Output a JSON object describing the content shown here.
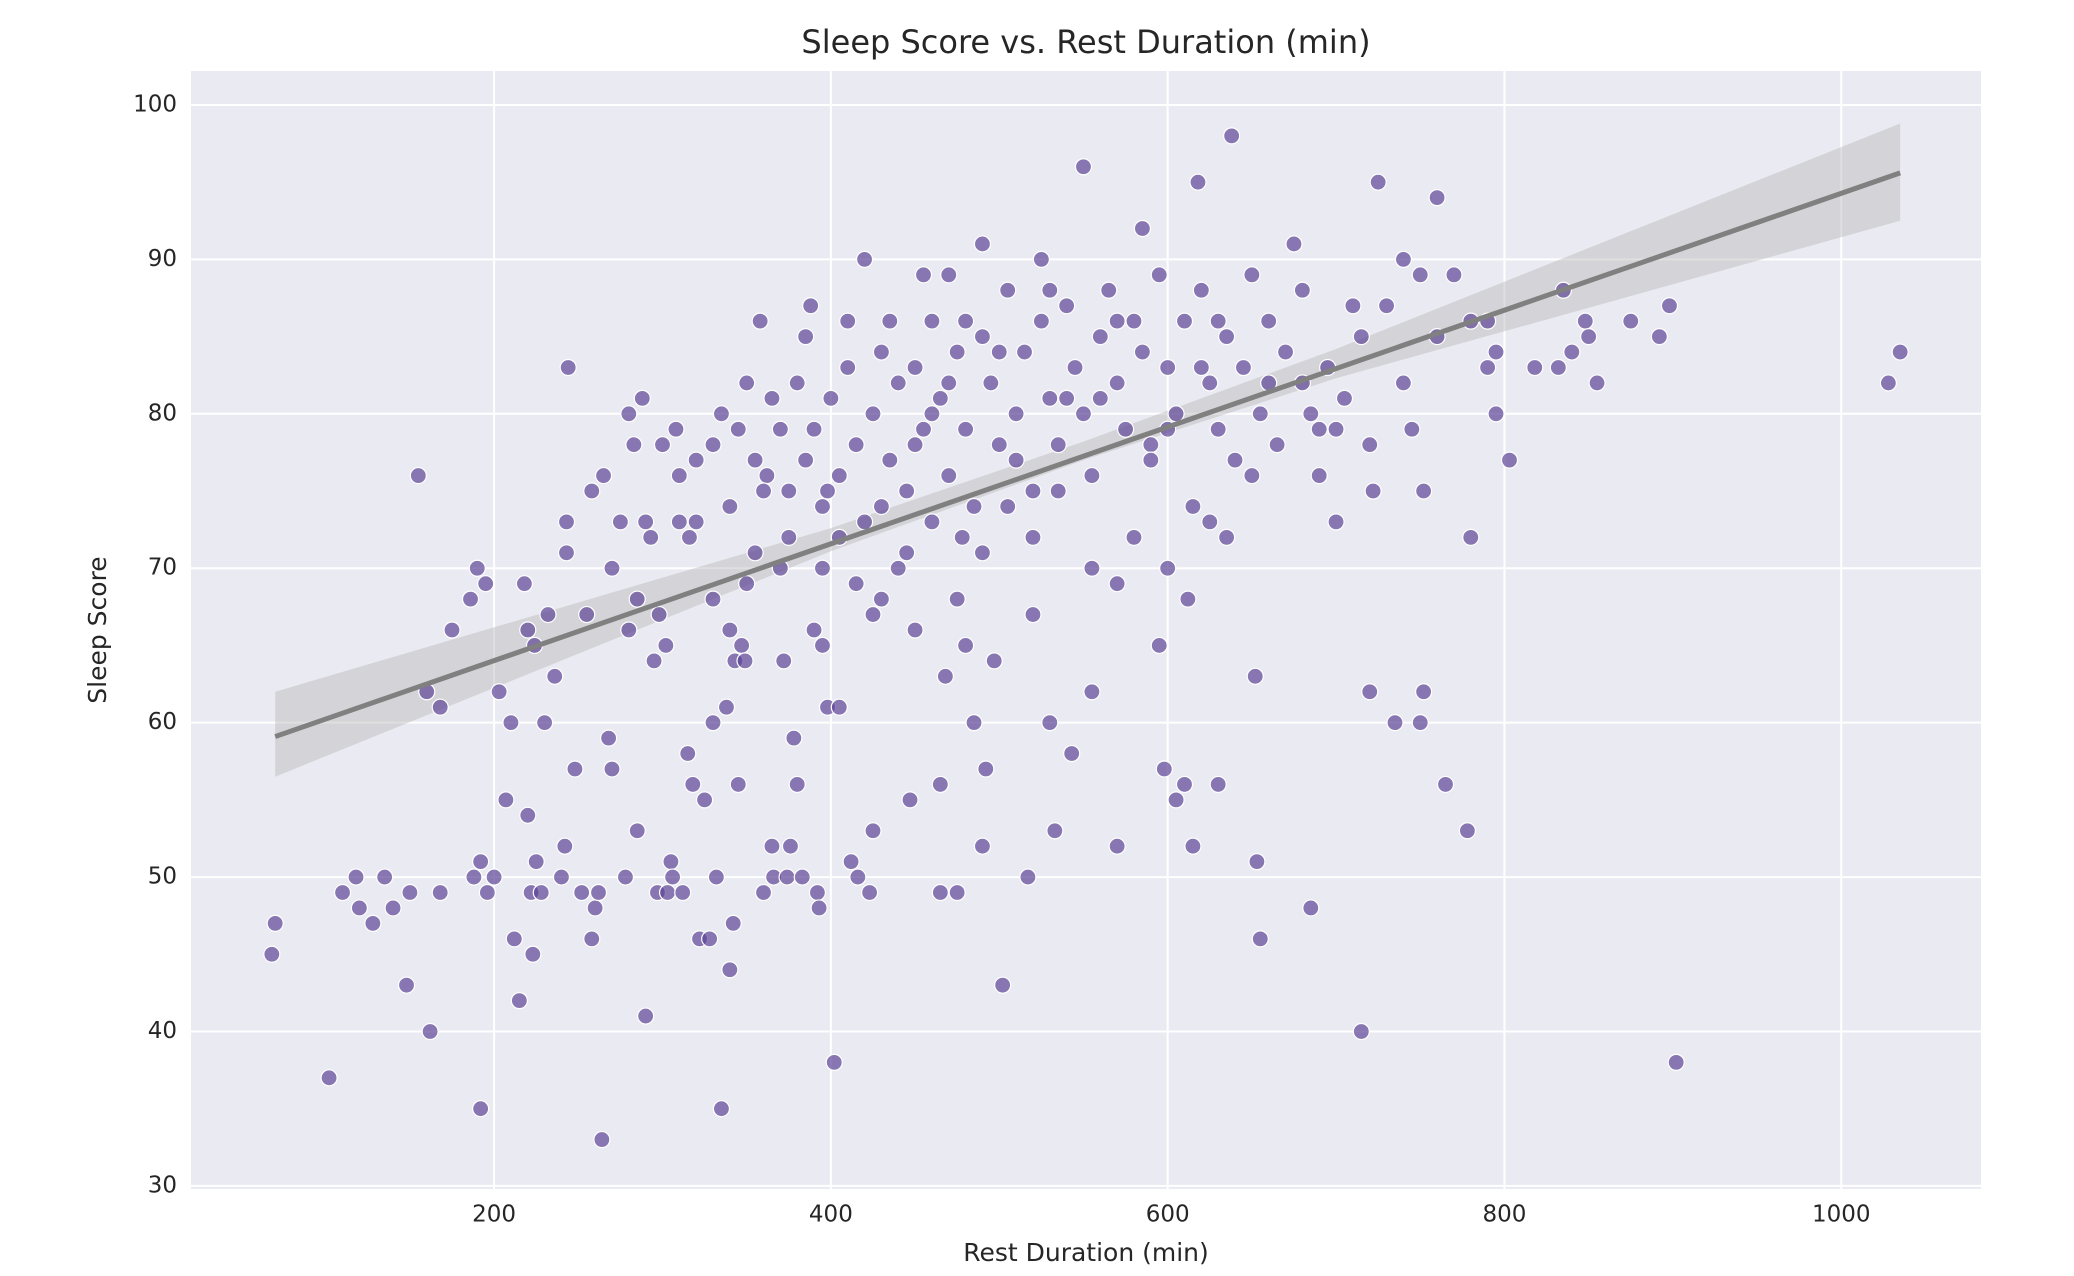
{
  "chart_data": {
    "type": "scatter",
    "title": "Sleep Score vs. Rest Duration (min)",
    "x_label": "Rest Duration (min)",
    "y_label": "Sleep Score",
    "color": "#5c4596",
    "xlim": [
      20,
      1083
    ],
    "ylim": [
      29.8,
      102.2
    ],
    "xticks": [
      200,
      400,
      600,
      800,
      1000
    ],
    "yticks": [
      30,
      40,
      50,
      60,
      70,
      80,
      90,
      100
    ],
    "grid": true,
    "x": [
      68,
      70,
      102,
      110,
      118,
      120,
      128,
      135,
      140,
      148,
      150,
      155,
      160,
      162,
      168,
      168,
      175,
      186,
      188,
      190,
      192,
      192,
      195,
      196,
      200,
      203,
      207,
      210,
      212,
      215,
      218,
      220,
      220,
      222,
      223,
      224,
      225,
      228,
      230,
      232,
      236,
      240,
      242,
      243,
      243,
      244,
      248,
      252,
      255,
      258,
      258,
      260,
      262,
      264,
      265,
      268,
      270,
      270,
      275,
      278,
      280,
      280,
      283,
      285,
      285,
      288,
      290,
      290,
      293,
      295,
      297,
      298,
      300,
      302,
      303,
      305,
      306,
      308,
      310,
      312,
      315,
      316,
      318,
      320,
      322,
      325,
      328,
      330,
      330,
      332,
      335,
      335,
      338,
      340,
      340,
      342,
      343,
      345,
      347,
      349,
      350,
      355,
      358,
      360,
      362,
      365,
      366,
      370,
      372,
      374,
      376,
      378,
      380,
      383,
      388,
      390,
      392,
      393,
      395,
      398,
      398,
      402,
      405,
      410,
      412,
      416,
      420,
      423,
      425,
      425,
      430,
      435,
      440,
      447,
      450,
      455,
      465,
      465,
      468,
      470,
      475,
      478,
      480,
      485,
      490,
      490,
      492,
      497,
      502,
      517,
      520,
      525,
      530,
      533,
      543,
      550,
      555,
      570,
      585,
      595,
      598,
      605,
      610,
      615,
      618,
      630,
      638,
      652,
      653,
      655,
      685,
      700,
      715,
      720,
      722,
      725,
      735,
      740,
      745,
      750,
      752,
      752,
      760,
      765,
      778,
      780,
      790,
      795,
      803,
      818,
      832,
      835,
      840,
      848,
      850,
      855,
      875,
      892,
      898,
      902,
      1028,
      1035,
      380,
      385,
      390,
      395,
      400,
      405,
      410,
      415,
      420,
      425,
      430,
      435,
      440,
      445,
      450,
      455,
      460,
      465,
      470,
      475,
      480,
      485,
      490,
      495,
      500,
      505,
      510,
      515,
      520,
      525,
      530,
      535,
      540,
      545,
      550,
      555,
      560,
      565,
      570,
      575,
      580,
      585,
      590,
      595,
      600,
      605,
      610,
      615,
      620,
      625,
      630,
      635,
      640,
      645,
      650,
      655,
      660,
      665,
      670,
      675,
      680,
      685,
      690,
      695,
      700,
      705,
      710,
      715,
      720,
      730,
      740,
      750,
      760,
      770,
      780,
      790,
      795,
      360,
      370,
      375,
      385,
      395,
      405,
      415,
      430,
      445,
      460,
      475,
      490,
      505,
      520,
      535,
      555,
      570,
      580,
      600,
      612,
      625,
      635,
      345,
      350,
      365,
      330,
      320,
      310,
      340,
      355,
      375,
      450,
      470,
      500,
      530,
      560,
      590,
      620,
      650,
      680,
      460,
      480,
      510,
      540,
      570,
      600,
      630,
      660,
      690
    ],
    "values": [
      45,
      47,
      37,
      49,
      50,
      48,
      47,
      50,
      48,
      43,
      49,
      76,
      62,
      40,
      61,
      49,
      66,
      68,
      50,
      70,
      35,
      51,
      69,
      49,
      50,
      62,
      55,
      60,
      46,
      42,
      69,
      54,
      66,
      49,
      45,
      65,
      51,
      49,
      60,
      67,
      63,
      50,
      52,
      71,
      73,
      83,
      57,
      49,
      67,
      75,
      46,
      48,
      49,
      33,
      76,
      59,
      57,
      70,
      73,
      50,
      66,
      80,
      78,
      53,
      68,
      81,
      41,
      73,
      72,
      64,
      49,
      67,
      78,
      65,
      49,
      51,
      50,
      79,
      73,
      49,
      58,
      72,
      56,
      77,
      46,
      55,
      46,
      60,
      68,
      50,
      80,
      35,
      61,
      66,
      44,
      47,
      64,
      56,
      65,
      64,
      69,
      77,
      86,
      49,
      76,
      52,
      50,
      79,
      64,
      50,
      52,
      59,
      56,
      50,
      87,
      66,
      49,
      48,
      65,
      75,
      61,
      38,
      61,
      86,
      51,
      50,
      90,
      49,
      53,
      67,
      68,
      86,
      70,
      55,
      66,
      89,
      56,
      49,
      63,
      89,
      49,
      72,
      65,
      60,
      91,
      52,
      57,
      64,
      43,
      50,
      67,
      90,
      60,
      53,
      58,
      96,
      62,
      52,
      92,
      65,
      57,
      55,
      56,
      52,
      95,
      56,
      98,
      63,
      51,
      46,
      48,
      73,
      40,
      62,
      75,
      95,
      60,
      90,
      79,
      60,
      62,
      75,
      94,
      56,
      53,
      72,
      86,
      80,
      77,
      83,
      83,
      88,
      84,
      86,
      85,
      82,
      86,
      85,
      87,
      38,
      82,
      84,
      82,
      85,
      79,
      74,
      81,
      76,
      83,
      78,
      73,
      80,
      84,
      77,
      82,
      75,
      83,
      79,
      86,
      81,
      76,
      84,
      79,
      74,
      85,
      82,
      78,
      88,
      80,
      84,
      75,
      86,
      81,
      78,
      87,
      83,
      80,
      76,
      85,
      88,
      82,
      79,
      86,
      84,
      78,
      89,
      83,
      80,
      86,
      74,
      88,
      82,
      79,
      85,
      77,
      83,
      89,
      80,
      86,
      78,
      84,
      91,
      82,
      80,
      76,
      83,
      79,
      81,
      87,
      85,
      78,
      87,
      82,
      89,
      85,
      89,
      86,
      83,
      84,
      75,
      70,
      72,
      77,
      70,
      72,
      69,
      74,
      71,
      73,
      68,
      71,
      74,
      72,
      75,
      70,
      69,
      72,
      70,
      68,
      73,
      72,
      79,
      82,
      81,
      78,
      73,
      76,
      74,
      71,
      75,
      78,
      82,
      84,
      88,
      81,
      77,
      83,
      76,
      88,
      80,
      86,
      77,
      81,
      86,
      79,
      86,
      82,
      79
    ],
    "regression": {
      "x": [
        70,
        1035
      ],
      "y": [
        59.1,
        95.6
      ]
    },
    "confidence_band": {
      "x": [
        70,
        400,
        550,
        700,
        1035
      ],
      "lower": [
        56.5,
        71.1,
        77.0,
        82.3,
        92.5
      ],
      "upper": [
        62.0,
        72.6,
        78.2,
        84.2,
        98.8
      ]
    }
  }
}
